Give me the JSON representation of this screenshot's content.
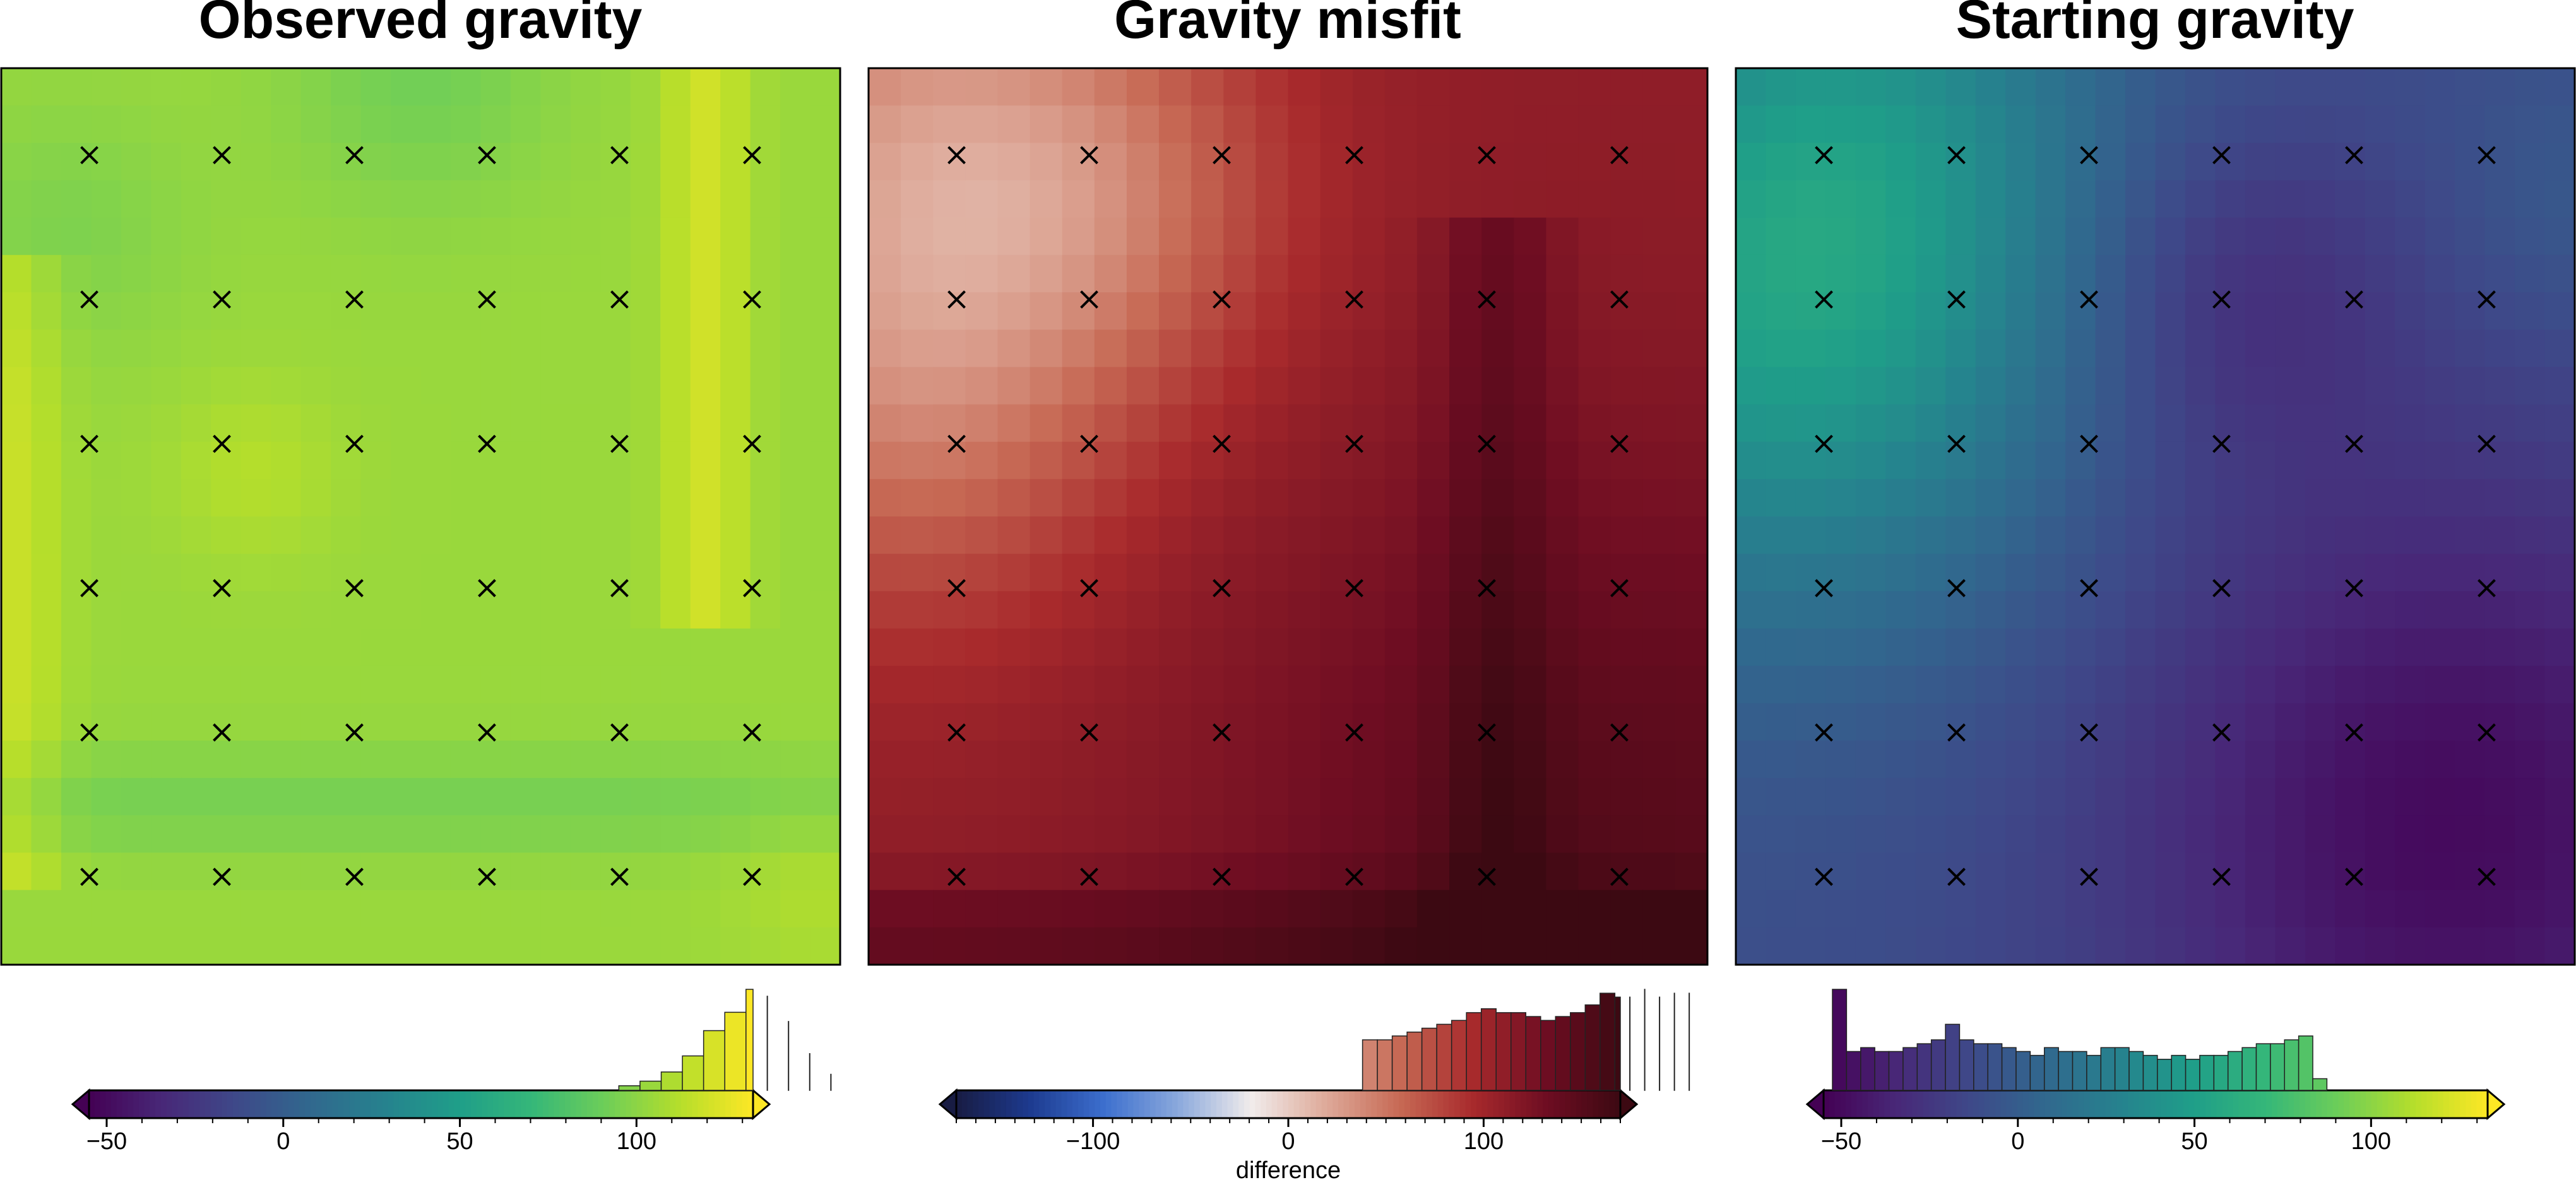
{
  "chart_data": [
    {
      "type": "heatmap",
      "title": "Observed gravity",
      "colormap": "viridis",
      "colorbar": {
        "label": "",
        "range": [
          -55,
          133
        ],
        "ticks": [
          -50,
          0,
          50,
          100
        ]
      },
      "histogram": {
        "bin_start": 95,
        "bin_width": 6,
        "counts": [
          2,
          4,
          8,
          15,
          26,
          34,
          44,
          41,
          30,
          16,
          7
        ]
      },
      "field": {
        "rows": 24,
        "cols": 28,
        "base": 104,
        "features": [
          {
            "shape": "ridge",
            "axis": "x",
            "at": 0.01,
            "width": 0.06,
            "amp": 14,
            "from": 0.2,
            "to": 0.9
          },
          {
            "shape": "ridge",
            "axis": "x",
            "at": 0.84,
            "width": 0.05,
            "amp": 16,
            "from": 0.0,
            "to": 0.62
          },
          {
            "shape": "ridge",
            "axis": "y",
            "at": 0.82,
            "width": 0.06,
            "amp": -10,
            "from": 0.0,
            "to": 1.0
          },
          {
            "shape": "blob",
            "x": 0.5,
            "y": 0.0,
            "r": 0.16,
            "amp": -12
          },
          {
            "shape": "blob",
            "x": 0.08,
            "y": 0.18,
            "r": 0.14,
            "amp": -8
          },
          {
            "shape": "blob",
            "x": 0.3,
            "y": 0.45,
            "r": 0.1,
            "amp": 8
          },
          {
            "shape": "blob",
            "x": 0.98,
            "y": 0.9,
            "r": 0.12,
            "amp": 7
          }
        ]
      },
      "markers": {
        "symbol": "x",
        "x": [
          0.105,
          0.263,
          0.421,
          0.579,
          0.737,
          0.895
        ],
        "y": [
          0.097,
          0.258,
          0.419,
          0.58,
          0.741,
          0.902
        ]
      }
    },
    {
      "type": "heatmap",
      "title": "Gravity misfit",
      "colormap": "balance",
      "colorbar": {
        "label": "difference",
        "range": [
          -170,
          170
        ],
        "ticks": [
          -100,
          0,
          100
        ]
      },
      "histogram": {
        "bin_start": 38,
        "bin_width": 7.6,
        "counts": [
          13,
          13,
          14,
          15,
          16,
          17,
          18,
          20,
          21,
          20,
          20,
          19,
          18,
          19,
          20,
          22,
          25,
          24,
          24,
          26,
          24,
          25,
          25
        ]
      },
      "field": {
        "rows": 24,
        "cols": 26,
        "base": 110,
        "features": [
          {
            "shape": "blob",
            "x": 0.05,
            "y": 0.08,
            "r": 0.3,
            "amp": -70
          },
          {
            "shape": "blob",
            "x": 0.05,
            "y": 0.4,
            "r": 0.25,
            "amp": -45
          },
          {
            "shape": "blob",
            "x": 0.3,
            "y": 0.15,
            "r": 0.22,
            "amp": -35
          },
          {
            "shape": "blob",
            "x": 0.9,
            "y": 0.9,
            "r": 0.45,
            "amp": 40
          },
          {
            "shape": "ridge",
            "axis": "y",
            "at": 0.97,
            "width": 0.06,
            "amp": 30,
            "from": 0.0,
            "to": 1.0
          },
          {
            "shape": "ridge",
            "axis": "x",
            "at": 0.75,
            "width": 0.07,
            "amp": 25,
            "from": 0.15,
            "to": 1.0
          }
        ]
      },
      "markers": {
        "symbol": "x",
        "x": [
          0.105,
          0.263,
          0.421,
          0.579,
          0.737,
          0.895
        ],
        "y": [
          0.097,
          0.258,
          0.419,
          0.58,
          0.741,
          0.902
        ]
      }
    },
    {
      "type": "heatmap",
      "title": "Starting gravity",
      "colormap": "viridis",
      "colorbar": {
        "label": "",
        "range": [
          -55,
          133
        ],
        "ticks": [
          -50,
          0,
          50,
          100
        ]
      },
      "histogram": {
        "bin_start": -52.5,
        "bin_width": 4,
        "counts": [
          26,
          10,
          11,
          10,
          10,
          11,
          12,
          13,
          17,
          13,
          12,
          12,
          11,
          10,
          9,
          11,
          10,
          10,
          9,
          11,
          11,
          10,
          9,
          8,
          9,
          8,
          9,
          9,
          10,
          11,
          12,
          12,
          13,
          14,
          3
        ]
      },
      "field": {
        "rows": 24,
        "cols": 28,
        "base": -10,
        "features": [
          {
            "shape": "blob",
            "x": 0.05,
            "y": 0.3,
            "r": 0.35,
            "amp": 50
          },
          {
            "shape": "blob",
            "x": 0.15,
            "y": 0.05,
            "r": 0.3,
            "amp": 30
          },
          {
            "shape": "blob",
            "x": 0.85,
            "y": 0.85,
            "r": 0.4,
            "amp": -40
          },
          {
            "shape": "blob",
            "x": 0.6,
            "y": 0.25,
            "r": 0.2,
            "amp": -20
          },
          {
            "shape": "blob",
            "x": 1.0,
            "y": 0.15,
            "r": 0.15,
            "amp": 8
          }
        ]
      },
      "markers": {
        "symbol": "x",
        "x": [
          0.105,
          0.263,
          0.421,
          0.579,
          0.737,
          0.895
        ],
        "y": [
          0.097,
          0.258,
          0.419,
          0.58,
          0.741,
          0.902
        ]
      }
    }
  ]
}
